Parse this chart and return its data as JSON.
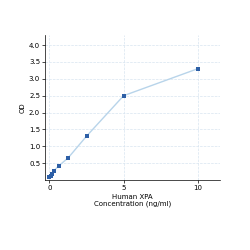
{
  "x": [
    0.0,
    0.078,
    0.156,
    0.313,
    0.625,
    1.25,
    2.5,
    5.0,
    10.0
  ],
  "y": [
    0.1,
    0.13,
    0.18,
    0.28,
    0.42,
    0.65,
    1.3,
    2.5,
    3.3
  ],
  "line_color": "#b8d4ea",
  "marker_color": "#2d5fa6",
  "marker_size": 3.5,
  "line_width": 1.0,
  "xlabel_line1": "Human XPA",
  "xlabel_line2": "Concentration (ng/ml)",
  "ylabel": "OD",
  "xlim": [
    -0.3,
    11.5
  ],
  "ylim": [
    0.0,
    4.3
  ],
  "yticks": [
    0.5,
    1.0,
    1.5,
    2.0,
    2.5,
    3.0,
    3.5,
    4.0
  ],
  "xticks": [
    0,
    5,
    10
  ],
  "grid_color": "#d8e4f0",
  "background_color": "#ffffff",
  "label_fontsize": 5.0,
  "tick_fontsize": 5.0
}
